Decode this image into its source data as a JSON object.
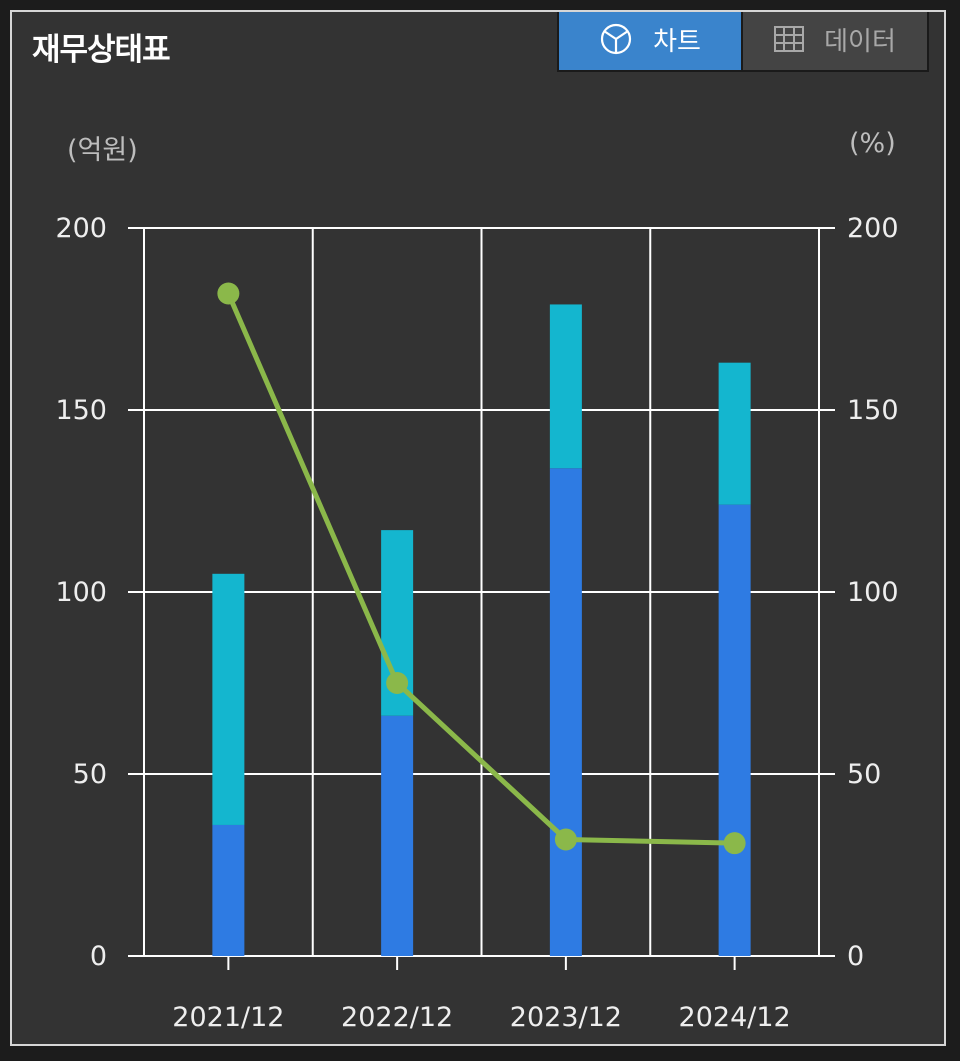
{
  "panel": {
    "title": "재무상태표"
  },
  "tabs": [
    {
      "label": "차트",
      "icon": "pie-chart-icon",
      "active": true
    },
    {
      "label": "데이터",
      "icon": "table-grid-icon",
      "active": false
    }
  ],
  "chart_data": {
    "type": "bar",
    "stacked": true,
    "categories": [
      "2021/12",
      "2022/12",
      "2023/12",
      "2024/12"
    ],
    "left_axis": {
      "unit_label": "(억원)",
      "ticks": [
        0,
        50,
        100,
        150,
        200
      ],
      "range": [
        0,
        200
      ]
    },
    "right_axis": {
      "unit_label": "(%)",
      "ticks": [
        0,
        50,
        100,
        150,
        200
      ],
      "range": [
        0,
        200
      ]
    },
    "grid": true,
    "series": [
      {
        "kind": "bar",
        "axis": "left",
        "color": "#2e7be3",
        "values": [
          36,
          66,
          134,
          124
        ]
      },
      {
        "kind": "bar",
        "axis": "left",
        "color": "#14b6cf",
        "values": [
          69,
          51,
          45,
          39
        ]
      },
      {
        "kind": "line",
        "axis": "right",
        "color": "#8bb84a",
        "values": [
          182,
          75,
          32,
          31
        ]
      }
    ]
  }
}
